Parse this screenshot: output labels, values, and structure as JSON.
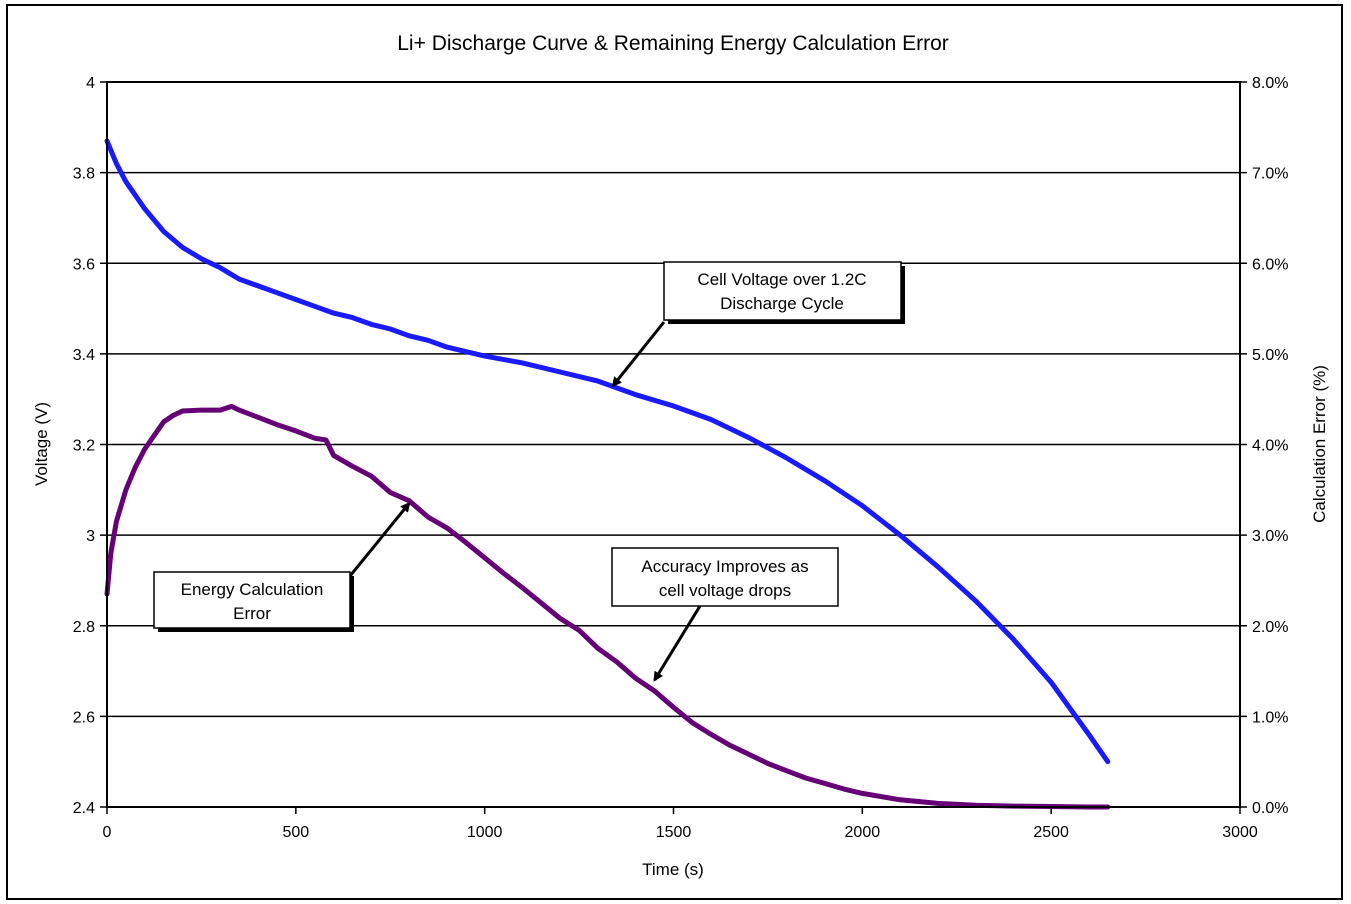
{
  "chart_data": {
    "type": "line",
    "title": "Li+ Discharge Curve & Remaining Energy Calculation Error",
    "xlabel": "Time (s)",
    "ylabel": "Voltage (V)",
    "y2label": "Calculation Error (%)",
    "xlim": [
      0,
      3000
    ],
    "ylim": [
      2.4,
      4
    ],
    "y2lim": [
      0,
      8
    ],
    "x_ticks": [
      "0",
      "500",
      "1000",
      "1500",
      "2000",
      "2500",
      "3000"
    ],
    "y_ticks": [
      "2.4",
      "2.6",
      "2.8",
      "3",
      "3.2",
      "3.4",
      "3.6",
      "3.8",
      "4"
    ],
    "y2_ticks": [
      "0.0%",
      "1.0%",
      "2.0%",
      "3.0%",
      "4.0%",
      "5.0%",
      "6.0%",
      "7.0%",
      "8.0%"
    ],
    "grid": "horizontal",
    "series": [
      {
        "key": "voltage",
        "axis": "left",
        "color": "#1a1aff",
        "x": [
          0,
          25,
          50,
          100,
          150,
          200,
          250,
          300,
          350,
          400,
          450,
          500,
          550,
          600,
          650,
          700,
          750,
          800,
          850,
          900,
          950,
          1000,
          1100,
          1200,
          1300,
          1400,
          1500,
          1600,
          1700,
          1800,
          1900,
          2000,
          2100,
          2200,
          2300,
          2400,
          2500,
          2600,
          2650
        ],
        "values": [
          3.87,
          3.82,
          3.78,
          3.72,
          3.67,
          3.635,
          3.61,
          3.59,
          3.565,
          3.55,
          3.535,
          3.52,
          3.505,
          3.49,
          3.48,
          3.465,
          3.455,
          3.44,
          3.43,
          3.415,
          3.405,
          3.395,
          3.38,
          3.36,
          3.34,
          3.31,
          3.285,
          3.255,
          3.215,
          3.17,
          3.12,
          3.065,
          3.0,
          2.93,
          2.855,
          2.77,
          2.675,
          2.56,
          2.5
        ]
      },
      {
        "key": "error",
        "axis": "right",
        "color": "#660077",
        "x": [
          0,
          10,
          25,
          50,
          75,
          100,
          125,
          150,
          175,
          200,
          250,
          300,
          330,
          350,
          400,
          450,
          500,
          550,
          580,
          600,
          650,
          700,
          750,
          800,
          850,
          900,
          950,
          1000,
          1050,
          1100,
          1150,
          1200,
          1250,
          1300,
          1350,
          1400,
          1450,
          1500,
          1550,
          1600,
          1650,
          1700,
          1750,
          1800,
          1850,
          1900,
          1950,
          2000,
          2100,
          2200,
          2300,
          2400,
          2500,
          2600,
          2650
        ],
        "values": [
          2.35,
          2.8,
          3.15,
          3.5,
          3.75,
          3.95,
          4.1,
          4.25,
          4.32,
          4.37,
          4.38,
          4.38,
          4.42,
          4.38,
          4.3,
          4.22,
          4.15,
          4.07,
          4.05,
          3.88,
          3.76,
          3.65,
          3.47,
          3.38,
          3.2,
          3.08,
          2.92,
          2.75,
          2.58,
          2.42,
          2.25,
          2.08,
          1.95,
          1.75,
          1.6,
          1.42,
          1.28,
          1.1,
          0.93,
          0.8,
          0.68,
          0.58,
          0.48,
          0.4,
          0.32,
          0.26,
          0.2,
          0.15,
          0.08,
          0.04,
          0.02,
          0.01,
          0.005,
          0.0,
          0.0
        ]
      }
    ],
    "annotations": [
      {
        "key": "voltage_note",
        "lines": [
          "Cell Voltage over 1.2C",
          "Discharge Cycle"
        ],
        "arrow_to": [
          1340,
          3.33
        ]
      },
      {
        "key": "error_note",
        "lines": [
          "Energy Calculation",
          "Error"
        ],
        "arrow_to": [
          800,
          3.07
        ]
      },
      {
        "key": "accuracy_note",
        "lines": [
          "Accuracy Improves as",
          "cell voltage drops"
        ],
        "arrow_to": [
          1450,
          2.68
        ]
      }
    ]
  }
}
